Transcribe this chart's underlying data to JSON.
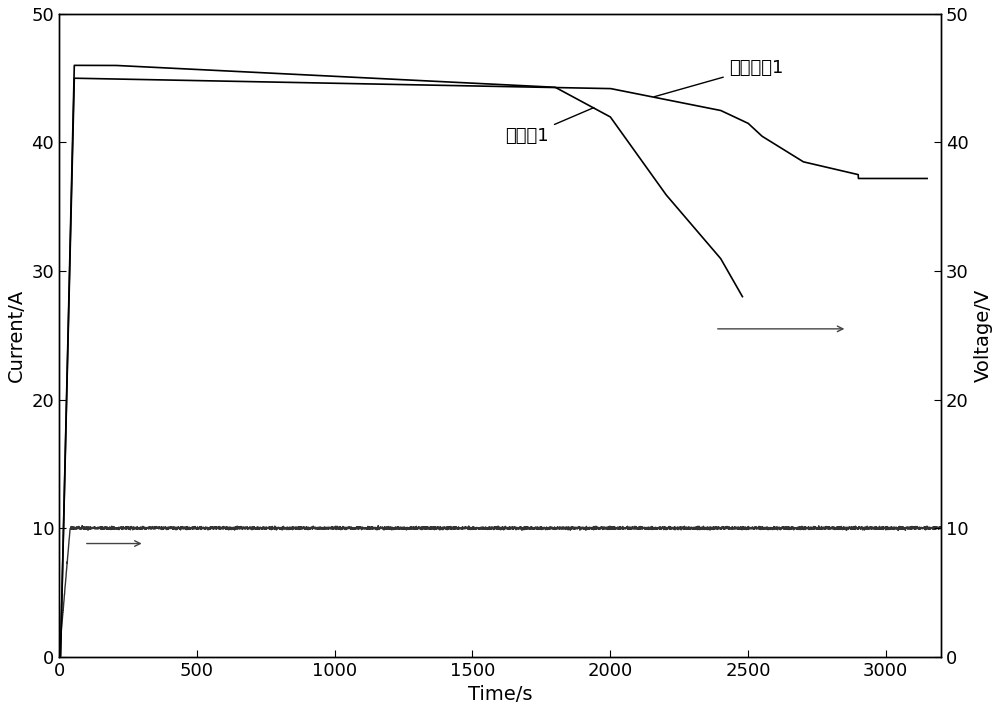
{
  "xlabel": "Time/s",
  "ylabel_left": "Current/A",
  "ylabel_right": "Voltage/V",
  "xlim": [
    0,
    3200
  ],
  "ylim_left": [
    0,
    50
  ],
  "ylim_right": [
    0,
    33.33
  ],
  "yticks_left": [
    0,
    10,
    20,
    30,
    40,
    50
  ],
  "ytick_labels_left": [
    "0",
    "10",
    "20",
    "30",
    "40",
    "50"
  ],
  "yticks_right_vals": [
    0,
    6.67,
    13.33,
    20.0,
    26.67,
    33.33
  ],
  "ytick_labels_right": [
    "0",
    "10",
    "20",
    "30",
    "40",
    "50"
  ],
  "xticks": [
    0,
    500,
    1000,
    1500,
    2000,
    2500,
    3000
  ],
  "background_color": "#ffffff",
  "label_app": "应用实例1",
  "label_comp": "对比例1",
  "font_size_label": 14,
  "font_size_tick": 13,
  "font_size_annotation": 13
}
